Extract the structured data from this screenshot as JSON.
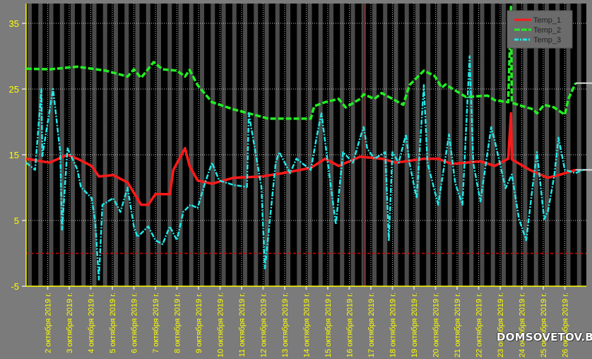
{
  "chart_data": {
    "type": "line",
    "title": "",
    "xlabel": "",
    "ylabel": "",
    "ylim": [
      -5,
      38
    ],
    "yticks": [
      35,
      25,
      15,
      5,
      -5
    ],
    "xlim": [
      "2019-10-01 00:00",
      "2019-10-27 00:00"
    ],
    "xtick_labels": [
      "2 октября 2019 г.",
      "3 октября 2019 г.",
      "4 октября 2019 г.",
      "5 октября 2019 г.",
      "6 октября 2019 г.",
      "7 октября 2019 г.",
      "8 октября 2019 г.",
      "9 октября 2019 г.",
      "10 октября 2019 г.",
      "11 октября 2019 г.",
      "12 октября 2019 г.",
      "13 октября 2019 г.",
      "14 октября 2019 г.",
      "15 октября 2019 г.",
      "16 октября 2019 г.",
      "17 октября 2019 г.",
      "18 октября 2019 г.",
      "19 октября 2019 г.",
      "20 октября 2019 г.",
      "21 октября 2019 г.",
      "22 октября 2019 г.",
      "23 октября 2019 г.",
      "24 октября 2019 г.",
      "25 октября 2019 г.",
      "26 октября 2019 г."
    ],
    "grid": true,
    "legend_position": "top-right",
    "day_night_stripes": true,
    "reference_line_y": 0,
    "marker_time": "2019-10-16 16:00",
    "colors": {
      "background": "#7b7b7b",
      "plot": "#000000",
      "stripe": "#4a4a4a",
      "axis": "#ffff00",
      "grid": "#c8c8c8",
      "reference": "#d40000",
      "marker": "#a00000"
    },
    "series": [
      {
        "name": "Temp_1",
        "color": "#ff1a1a",
        "style": "solid",
        "points": [
          [
            "2019-10-01 00:00",
            14.4
          ],
          [
            "2019-10-02 02:00",
            13.8
          ],
          [
            "2019-10-02 22:00",
            15.0
          ],
          [
            "2019-10-03 09:00",
            14.4
          ],
          [
            "2019-10-04 01:00",
            13.3
          ],
          [
            "2019-10-04 09:00",
            11.7
          ],
          [
            "2019-10-05 01:00",
            11.9
          ],
          [
            "2019-10-05 17:00",
            10.8
          ],
          [
            "2019-10-06 08:00",
            7.4
          ],
          [
            "2019-10-06 16:00",
            7.4
          ],
          [
            "2019-10-07 00:00",
            9.0
          ],
          [
            "2019-10-07 16:00",
            9.0
          ],
          [
            "2019-10-07 20:00",
            12.7
          ],
          [
            "2019-10-08 09:00",
            16.0
          ],
          [
            "2019-10-08 14:00",
            13.3
          ],
          [
            "2019-10-08 23:00",
            11.1
          ],
          [
            "2019-10-09 15:00",
            10.6
          ],
          [
            "2019-10-10 15:00",
            11.5
          ],
          [
            "2019-10-11 22:00",
            11.7
          ],
          [
            "2019-10-12 22:00",
            12.2
          ],
          [
            "2019-10-14 05:00",
            13.0
          ],
          [
            "2019-10-14 21:00",
            14.4
          ],
          [
            "2019-10-15 12:00",
            13.3
          ],
          [
            "2019-10-16 12:00",
            14.7
          ],
          [
            "2019-10-17 12:00",
            14.4
          ],
          [
            "2019-10-18 04:00",
            13.8
          ],
          [
            "2019-10-19 11:00",
            14.4
          ],
          [
            "2019-10-20 03:00",
            14.4
          ],
          [
            "2019-10-20 18:00",
            13.6
          ],
          [
            "2019-10-22 02:00",
            14.0
          ],
          [
            "2019-10-22 18:00",
            13.3
          ],
          [
            "2019-10-23 09:00",
            14.4
          ],
          [
            "2019-10-23 12:00",
            21.3
          ],
          [
            "2019-10-23 13:00",
            14.3
          ],
          [
            "2019-10-24 09:00",
            12.7
          ],
          [
            "2019-10-25 05:00",
            11.5
          ],
          [
            "2019-10-25 17:00",
            11.9
          ],
          [
            "2019-10-26 12:00",
            12.7
          ]
        ]
      },
      {
        "name": "Temp_2",
        "color": "#22ee22",
        "style": "dashed",
        "points": [
          [
            "2019-10-01 00:00",
            28.1
          ],
          [
            "2019-10-02 02:00",
            28.0
          ],
          [
            "2019-10-03 09:00",
            28.4
          ],
          [
            "2019-10-04 17:00",
            27.8
          ],
          [
            "2019-10-05 17:00",
            26.9
          ],
          [
            "2019-10-06 00:00",
            28.0
          ],
          [
            "2019-10-06 08:00",
            26.7
          ],
          [
            "2019-10-06 22:00",
            29.1
          ],
          [
            "2019-10-07 08:00",
            28.0
          ],
          [
            "2019-10-08 00:00",
            27.8
          ],
          [
            "2019-10-08 09:00",
            26.9
          ],
          [
            "2019-10-08 14:00",
            27.9
          ],
          [
            "2019-10-08 23:00",
            25.6
          ],
          [
            "2019-10-09 15:00",
            23.0
          ],
          [
            "2019-10-10 15:00",
            21.9
          ],
          [
            "2019-10-11 22:00",
            20.8
          ],
          [
            "2019-10-12 06:00",
            20.5
          ],
          [
            "2019-10-14 05:00",
            20.5
          ],
          [
            "2019-10-14 09:00",
            22.4
          ],
          [
            "2019-10-14 21:00",
            23.0
          ],
          [
            "2019-10-15 12:00",
            23.5
          ],
          [
            "2019-10-15 20:00",
            22.2
          ],
          [
            "2019-10-16 12:00",
            23.5
          ],
          [
            "2019-10-16 16:00",
            24.2
          ],
          [
            "2019-10-17 04:00",
            23.5
          ],
          [
            "2019-10-17 12:00",
            24.4
          ],
          [
            "2019-10-18 12:00",
            22.6
          ],
          [
            "2019-10-18 19:00",
            25.6
          ],
          [
            "2019-10-19 11:00",
            27.8
          ],
          [
            "2019-10-19 23:00",
            27.0
          ],
          [
            "2019-10-20 07:00",
            25.2
          ],
          [
            "2019-10-20 11:00",
            25.7
          ],
          [
            "2019-10-21 10:00",
            23.8
          ],
          [
            "2019-10-22 10:00",
            24.0
          ],
          [
            "2019-10-22 18:00",
            23.3
          ],
          [
            "2019-10-23 09:00",
            23.0
          ],
          [
            "2019-10-23 12:00",
            37.5
          ],
          [
            "2019-10-23 13:00",
            22.9
          ],
          [
            "2019-10-24 01:00",
            22.4
          ],
          [
            "2019-10-24 13:00",
            21.9
          ],
          [
            "2019-10-24 17:00",
            21.3
          ],
          [
            "2019-10-25 01:00",
            22.6
          ],
          [
            "2019-10-25 12:00",
            22.2
          ],
          [
            "2019-10-26 00:00",
            21.1
          ],
          [
            "2019-10-26 04:00",
            23.5
          ],
          [
            "2019-10-26 12:00",
            25.9
          ]
        ]
      },
      {
        "name": "Temp_3",
        "color": "#22e6e6",
        "style": "dashdot",
        "points": [
          [
            "2019-10-01 00:00",
            13.8
          ],
          [
            "2019-10-01 10:00",
            12.7
          ],
          [
            "2019-10-01 17:00",
            25.0
          ],
          [
            "2019-10-01 18:00",
            14.8
          ],
          [
            "2019-10-02 06:00",
            25.0
          ],
          [
            "2019-10-02 14:00",
            15.4
          ],
          [
            "2019-10-02 16:00",
            3.6
          ],
          [
            "2019-10-02 22:00",
            16.0
          ],
          [
            "2019-10-03 09:00",
            12.8
          ],
          [
            "2019-10-03 13:00",
            10.1
          ],
          [
            "2019-10-04 01:00",
            8.4
          ],
          [
            "2019-10-04 05:00",
            4.7
          ],
          [
            "2019-10-04 09:00",
            -4.0
          ],
          [
            "2019-10-04 13:00",
            7.4
          ],
          [
            "2019-10-05 01:00",
            8.4
          ],
          [
            "2019-10-05 09:00",
            6.3
          ],
          [
            "2019-10-05 17:00",
            10.0
          ],
          [
            "2019-10-06 00:00",
            4.1
          ],
          [
            "2019-10-06 04:00",
            2.5
          ],
          [
            "2019-10-06 16:00",
            4.1
          ],
          [
            "2019-10-07 00:00",
            2.0
          ],
          [
            "2019-10-07 08:00",
            1.4
          ],
          [
            "2019-10-07 16:00",
            4.1
          ],
          [
            "2019-10-08 00:00",
            2.0
          ],
          [
            "2019-10-08 07:00",
            6.3
          ],
          [
            "2019-10-08 15:00",
            7.4
          ],
          [
            "2019-10-08 23:00",
            6.9
          ],
          [
            "2019-10-09 07:00",
            10.6
          ],
          [
            "2019-10-09 15:00",
            13.8
          ],
          [
            "2019-10-09 23:00",
            11.1
          ],
          [
            "2019-10-10 15:00",
            10.4
          ],
          [
            "2019-10-11 06:00",
            10.1
          ],
          [
            "2019-10-11 08:00",
            21.3
          ],
          [
            "2019-10-11 22:00",
            10.1
          ],
          [
            "2019-10-12 02:00",
            -2.3
          ],
          [
            "2019-10-12 14:00",
            13.8
          ],
          [
            "2019-10-12 18:00",
            15.4
          ],
          [
            "2019-10-13 06:00",
            12.2
          ],
          [
            "2019-10-13 13:00",
            14.4
          ],
          [
            "2019-10-14 05:00",
            12.7
          ],
          [
            "2019-10-14 13:00",
            18.7
          ],
          [
            "2019-10-14 17:00",
            21.3
          ],
          [
            "2019-10-15 01:00",
            12.7
          ],
          [
            "2019-10-15 09:00",
            4.4
          ],
          [
            "2019-10-15 17:00",
            15.4
          ],
          [
            "2019-10-16 04:00",
            13.8
          ],
          [
            "2019-10-16 12:00",
            17.6
          ],
          [
            "2019-10-16 16:00",
            19.2
          ],
          [
            "2019-10-16 20:00",
            15.9
          ],
          [
            "2019-10-17 04:00",
            14.4
          ],
          [
            "2019-10-17 16:00",
            15.4
          ],
          [
            "2019-10-17 20:00",
            2.0
          ],
          [
            "2019-10-18 00:00",
            15.4
          ],
          [
            "2019-10-18 07:00",
            13.8
          ],
          [
            "2019-10-18 15:00",
            18.1
          ],
          [
            "2019-10-18 19:00",
            13.8
          ],
          [
            "2019-10-19 03:00",
            8.4
          ],
          [
            "2019-10-19 11:00",
            25.6
          ],
          [
            "2019-10-19 15:00",
            13.8
          ],
          [
            "2019-10-20 03:00",
            7.4
          ],
          [
            "2019-10-20 15:00",
            18.1
          ],
          [
            "2019-10-20 22:00",
            10.6
          ],
          [
            "2019-10-21 06:00",
            7.4
          ],
          [
            "2019-10-21 14:00",
            30.0
          ],
          [
            "2019-10-21 18:00",
            13.8
          ],
          [
            "2019-10-22 02:00",
            7.9
          ],
          [
            "2019-10-22 14:00",
            19.2
          ],
          [
            "2019-10-22 18:00",
            17.1
          ],
          [
            "2019-10-23 06:00",
            9.9
          ],
          [
            "2019-10-23 13:00",
            12.0
          ],
          [
            "2019-10-23 21:00",
            5.2
          ],
          [
            "2019-10-24 05:00",
            2.0
          ],
          [
            "2019-10-24 13:00",
            11.1
          ],
          [
            "2019-10-24 17:00",
            15.4
          ],
          [
            "2019-10-25 01:00",
            5.2
          ],
          [
            "2019-10-25 05:00",
            6.3
          ],
          [
            "2019-10-25 12:00",
            11.6
          ],
          [
            "2019-10-25 17:00",
            17.6
          ],
          [
            "2019-10-26 00:00",
            12.7
          ],
          [
            "2019-10-26 12:00",
            12.2
          ],
          [
            "2019-10-26 20:00",
            12.7
          ]
        ]
      }
    ]
  },
  "watermark": "DOMSOVETOV.BY"
}
